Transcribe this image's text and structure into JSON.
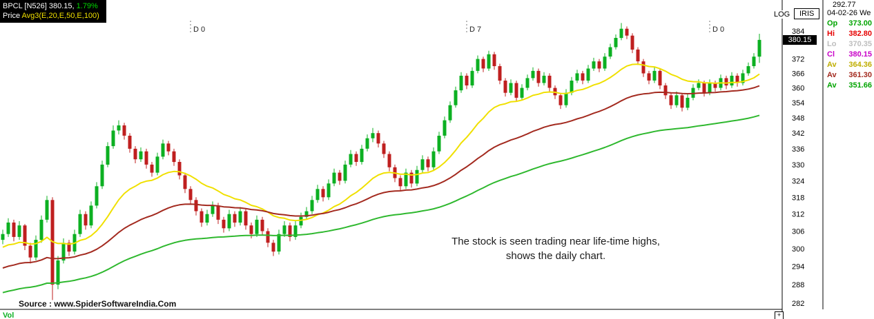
{
  "header": {
    "symbol": "BPCL",
    "series": "[N526]",
    "last_price": "380.15,",
    "change_pct": "1.79%",
    "indicator_label": "Price",
    "indicator_params": "Avg3(E,20,E,50,E,100)"
  },
  "scale_label": "LOG",
  "iris_label": "IRIS",
  "price_tag": "380.15",
  "panel": {
    "ref_price": "292.77",
    "date": "04-02-26 We",
    "rows": [
      {
        "label": "Op",
        "value": "373.00",
        "color": "#00a400"
      },
      {
        "label": "Hi",
        "value": "382.80",
        "color": "#e60000"
      },
      {
        "label": "Lo",
        "value": "370.35",
        "color": "#bdbdbd"
      },
      {
        "label": "Cl",
        "value": "380.15",
        "color": "#c800c8"
      },
      {
        "label": "Av",
        "value": "364.36",
        "color": "#bfae00"
      },
      {
        "label": "Av",
        "value": "361.30",
        "color": "#a32a1f"
      },
      {
        "label": "Av",
        "value": "351.66",
        "color": "#00a400"
      }
    ]
  },
  "annotation": {
    "line1": "The stock is seen trading near life-time highs,",
    "line2": "shows the daily chart."
  },
  "source": "Source : www.SpiderSoftwareIndia.Com",
  "vol_label": "Vol",
  "controls": {
    "resize_glyph": "+"
  },
  "chart_data": {
    "type": "candlestick",
    "title": "BPCL daily chart near life-time highs",
    "scale": "log",
    "ylim": [
      281,
      390
    ],
    "y_ticks": [
      384,
      372,
      366,
      360,
      354,
      348,
      342,
      336,
      330,
      324,
      318,
      312,
      306,
      300,
      294,
      288,
      282
    ],
    "colors": {
      "up": "#0cb022",
      "down": "#bf1f1f"
    },
    "markers": [
      {
        "index": 34,
        "label": "D 0"
      },
      {
        "index": 84,
        "label": "D 7"
      },
      {
        "index": 128,
        "label": "D 0"
      }
    ],
    "overlays": [
      {
        "name": "Avg(E,20)",
        "period": 20,
        "seed": 300,
        "color": "#f0e000"
      },
      {
        "name": "Avg(E,50)",
        "period": 50,
        "seed": 293,
        "color": "#a32a1f"
      },
      {
        "name": "Avg(E,100)",
        "period": 100,
        "seed": 285,
        "color": "#2eb82e"
      }
    ],
    "ohlc": [
      [
        303,
        306.5,
        301.5,
        305
      ],
      [
        305,
        310.5,
        304,
        309
      ],
      [
        309,
        310,
        302.5,
        304
      ],
      [
        304,
        309.5,
        303,
        308
      ],
      [
        308,
        308.5,
        299.5,
        301
      ],
      [
        301,
        302,
        295,
        297
      ],
      [
        297,
        304.5,
        296,
        303
      ],
      [
        303,
        311.5,
        302,
        310
      ],
      [
        310,
        318.5,
        309,
        317
      ],
      [
        317,
        318,
        283,
        288
      ],
      [
        288,
        297.5,
        286.5,
        296
      ],
      [
        296,
        303.5,
        295,
        302
      ],
      [
        302,
        303,
        297.5,
        299
      ],
      [
        299,
        306.5,
        298,
        305
      ],
      [
        305,
        313.5,
        304,
        312
      ],
      [
        312,
        313,
        306.5,
        308
      ],
      [
        308,
        316.5,
        307,
        315
      ],
      [
        315,
        323.5,
        314,
        322
      ],
      [
        322,
        331.5,
        321,
        330
      ],
      [
        330,
        338.5,
        329,
        337
      ],
      [
        337,
        345,
        336,
        343
      ],
      [
        343,
        347,
        341.5,
        345
      ],
      [
        345,
        346,
        339.5,
        341
      ],
      [
        341,
        342,
        334.5,
        336
      ],
      [
        336,
        337,
        330.5,
        332
      ],
      [
        332,
        336.5,
        331,
        335
      ],
      [
        335,
        336,
        328.5,
        330
      ],
      [
        330,
        331,
        325.5,
        327
      ],
      [
        327,
        334.5,
        326,
        333
      ],
      [
        333,
        339.5,
        332,
        338
      ],
      [
        338,
        339,
        333.5,
        335
      ],
      [
        335,
        336,
        329.5,
        331
      ],
      [
        331,
        332,
        324.5,
        326
      ],
      [
        326,
        327,
        319.5,
        321
      ],
      [
        321,
        322,
        315.5,
        317
      ],
      [
        317,
        318,
        311.5,
        313
      ],
      [
        313,
        314,
        307.5,
        309
      ],
      [
        309,
        313.5,
        308,
        312
      ],
      [
        312,
        316.5,
        311,
        315
      ],
      [
        315,
        316,
        308.5,
        310
      ],
      [
        310,
        311,
        305.5,
        307
      ],
      [
        307,
        313.5,
        306,
        312
      ],
      [
        312,
        313,
        307.5,
        309
      ],
      [
        309,
        314.5,
        308,
        313
      ],
      [
        313,
        314,
        306.5,
        308
      ],
      [
        308,
        309,
        303.5,
        305
      ],
      [
        305,
        311.5,
        304,
        310
      ],
      [
        310,
        311,
        304.5,
        306
      ],
      [
        306,
        307,
        300.5,
        302
      ],
      [
        302,
        303,
        297.5,
        299
      ],
      [
        299,
        306.5,
        298,
        305
      ],
      [
        305,
        309.5,
        304,
        308
      ],
      [
        308,
        309,
        302.5,
        304
      ],
      [
        304,
        309.5,
        303,
        308
      ],
      [
        308,
        312.5,
        307,
        311
      ],
      [
        311,
        314.5,
        310,
        313
      ],
      [
        313,
        318.5,
        312,
        317
      ],
      [
        317,
        322.5,
        316,
        321
      ],
      [
        321,
        322,
        316.5,
        318
      ],
      [
        318,
        324.5,
        317,
        323
      ],
      [
        323,
        328.5,
        322,
        327
      ],
      [
        327,
        328,
        322.5,
        324
      ],
      [
        324,
        331.5,
        323,
        330
      ],
      [
        330,
        335.5,
        329,
        334
      ],
      [
        334,
        335,
        329.5,
        331
      ],
      [
        331,
        337.5,
        330,
        336
      ],
      [
        336,
        341.5,
        335,
        340
      ],
      [
        340,
        344,
        338.5,
        342
      ],
      [
        342,
        343,
        336.5,
        338
      ],
      [
        338,
        339,
        332.5,
        334
      ],
      [
        334,
        335,
        327.5,
        329
      ],
      [
        329,
        330,
        323.5,
        325
      ],
      [
        325,
        326,
        320.5,
        322
      ],
      [
        322,
        328.5,
        321,
        327
      ],
      [
        327,
        328,
        321.5,
        323
      ],
      [
        323,
        329.5,
        322,
        328
      ],
      [
        328,
        333.5,
        327,
        332
      ],
      [
        332,
        333,
        327.5,
        329
      ],
      [
        329,
        336.5,
        328,
        335
      ],
      [
        335,
        342.5,
        334,
        341
      ],
      [
        341,
        348.5,
        340,
        347
      ],
      [
        347,
        354.5,
        346,
        353
      ],
      [
        353,
        360.5,
        352,
        359
      ],
      [
        359,
        366.5,
        358,
        365
      ],
      [
        365,
        366,
        359.5,
        361
      ],
      [
        361,
        368.5,
        360,
        367
      ],
      [
        367,
        373.5,
        366,
        372
      ],
      [
        372,
        373,
        366.5,
        368
      ],
      [
        368,
        375.5,
        367,
        374
      ],
      [
        374,
        375,
        367.5,
        369
      ],
      [
        369,
        370,
        361.5,
        363
      ],
      [
        363,
        364,
        356.5,
        358
      ],
      [
        358,
        363.5,
        357,
        362
      ],
      [
        362,
        363,
        354.5,
        356
      ],
      [
        356,
        361.5,
        355,
        360
      ],
      [
        360,
        365.5,
        359,
        364
      ],
      [
        364,
        368.5,
        363,
        367
      ],
      [
        367,
        368,
        360.5,
        362
      ],
      [
        362,
        366.5,
        361,
        365
      ],
      [
        365,
        366,
        358.5,
        360
      ],
      [
        360,
        361,
        355.5,
        357
      ],
      [
        357,
        358,
        351.5,
        353
      ],
      [
        353,
        359.5,
        352,
        358
      ],
      [
        358,
        364.5,
        357,
        363
      ],
      [
        363,
        367.5,
        362,
        366
      ],
      [
        366,
        367,
        361.5,
        363
      ],
      [
        363,
        369.5,
        362,
        368
      ],
      [
        368,
        372.5,
        367,
        371
      ],
      [
        371,
        372,
        366.5,
        368
      ],
      [
        368,
        374.5,
        367,
        373
      ],
      [
        373,
        378.5,
        372,
        377
      ],
      [
        377,
        382.5,
        376,
        381
      ],
      [
        381,
        387.5,
        380,
        385
      ],
      [
        385,
        386,
        380.5,
        382
      ],
      [
        382,
        383,
        374.5,
        376
      ],
      [
        376,
        377,
        369.5,
        371
      ],
      [
        371,
        372,
        364.5,
        366
      ],
      [
        366,
        367,
        361.5,
        363
      ],
      [
        363,
        368.5,
        362,
        367
      ],
      [
        367,
        368,
        359.5,
        361
      ],
      [
        361,
        362,
        355.5,
        357
      ],
      [
        357,
        358,
        351.5,
        353
      ],
      [
        353,
        358.5,
        352,
        357
      ],
      [
        357,
        358,
        350.5,
        352
      ],
      [
        352,
        357.5,
        351,
        356
      ],
      [
        356,
        361.5,
        355,
        360
      ],
      [
        360,
        363.5,
        359,
        362
      ],
      [
        362,
        363,
        356.5,
        358
      ],
      [
        358,
        363.5,
        357,
        362
      ],
      [
        362,
        363,
        358.5,
        360
      ],
      [
        360,
        365.5,
        359,
        364
      ],
      [
        364,
        365,
        359.5,
        361
      ],
      [
        361,
        366.5,
        360,
        365
      ],
      [
        365,
        366,
        360.5,
        362
      ],
      [
        362,
        367.5,
        361,
        366
      ],
      [
        366,
        370.5,
        365,
        369
      ],
      [
        369,
        374.5,
        368,
        373
      ],
      [
        373,
        382.8,
        370.35,
        380.15
      ]
    ]
  }
}
